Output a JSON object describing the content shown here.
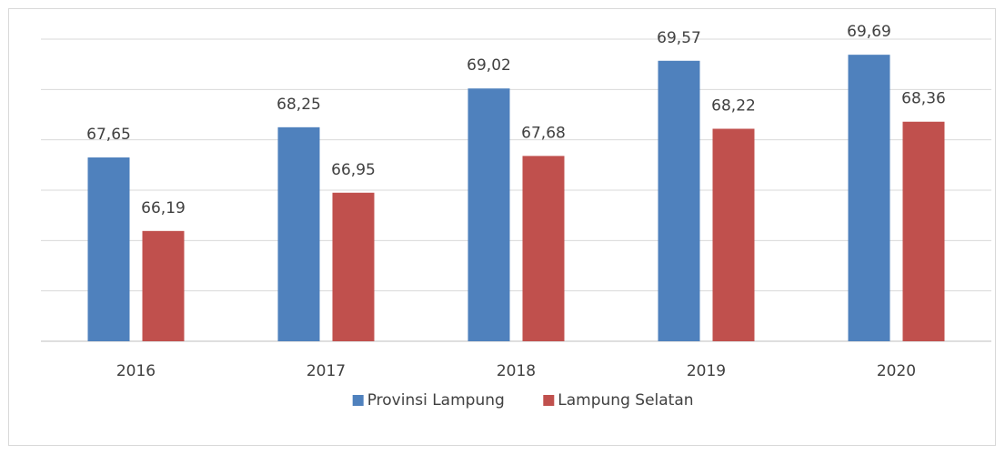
{
  "chart_data": {
    "type": "bar",
    "categories": [
      "2016",
      "2017",
      "2018",
      "2019",
      "2020"
    ],
    "series": [
      {
        "name": "Provinsi Lampung",
        "color": "#4f81bd",
        "values": [
          67.65,
          68.25,
          69.02,
          69.57,
          69.69
        ],
        "value_labels": [
          "67,65",
          "68,25",
          "69,02",
          "69,57",
          "69,69"
        ]
      },
      {
        "name": "Lampung Selatan",
        "color": "#c0504d",
        "values": [
          66.19,
          66.95,
          67.68,
          68.22,
          68.36
        ],
        "value_labels": [
          "66,19",
          "66,95",
          "67,68",
          "68,22",
          "68,36"
        ]
      }
    ],
    "ylim": [
      64,
      70
    ],
    "yticks": [
      64,
      65,
      66,
      67,
      68,
      69,
      70
    ],
    "grid": true,
    "legend": "bottom"
  }
}
